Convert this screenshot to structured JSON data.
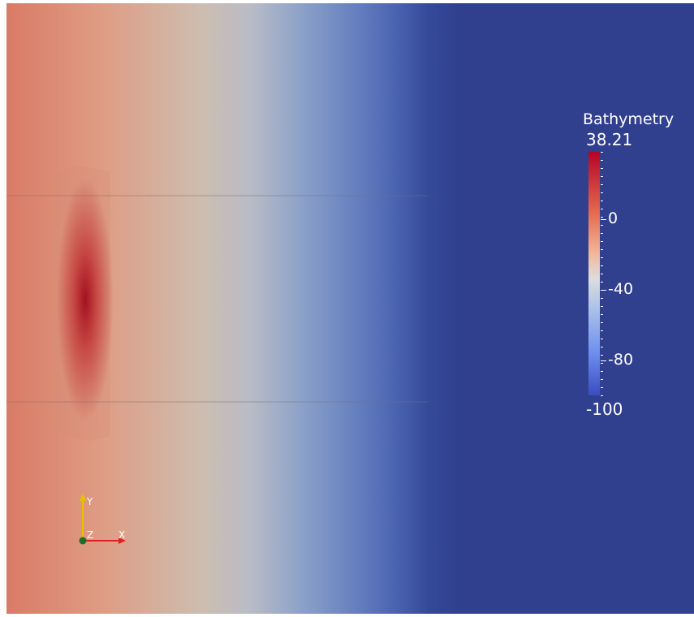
{
  "colorbar": {
    "title": "Bathymetry",
    "max_label": "38.21",
    "min_label": "-100",
    "ticks": [
      {
        "label": "0",
        "value": 0
      },
      {
        "label": "-40",
        "value": -40
      },
      {
        "label": "-80",
        "value": -80
      }
    ],
    "range": [
      -100,
      38.21
    ],
    "colormap": [
      "#3b4cc0",
      "#dddddd",
      "#b40426"
    ]
  },
  "axes": {
    "x_label": "X",
    "y_label": "Y",
    "z_label": "Z",
    "x_color": "#e02020",
    "y_color": "#e6c200",
    "z_color": "#1f6b2a"
  }
}
